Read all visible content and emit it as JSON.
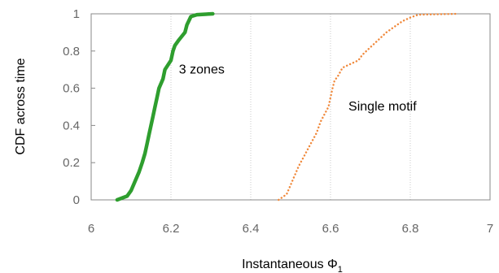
{
  "chart_data": {
    "type": "line",
    "title": "",
    "xlabel": "Instantaneous Φ",
    "xlabel_sub": "1",
    "ylabel": "CDF across time",
    "xlim": [
      6,
      7
    ],
    "ylim": [
      0,
      1
    ],
    "xticks": [
      "6",
      "6.2",
      "6.4",
      "6.6",
      "6.8",
      "7"
    ],
    "yticks": [
      "0",
      "0.2",
      "0.4",
      "0.6",
      "0.8",
      "1"
    ],
    "grid": "vertical",
    "legend": "none",
    "annotations": [
      {
        "text": "3 zones",
        "x": 6.22,
        "y": 0.68
      },
      {
        "text": "Single motif",
        "x": 6.645,
        "y": 0.48
      }
    ],
    "series": [
      {
        "style": "solid",
        "color": "#2e9e2e",
        "x": [
          6.065,
          6.09,
          6.1,
          6.11,
          6.12,
          6.128,
          6.135,
          6.14,
          6.145,
          6.15,
          6.155,
          6.16,
          6.165,
          6.17,
          6.18,
          6.185,
          6.2,
          6.205,
          6.21,
          6.22,
          6.235,
          6.24,
          6.25,
          6.265,
          6.305
        ],
        "y": [
          0.0,
          0.02,
          0.05,
          0.1,
          0.15,
          0.2,
          0.25,
          0.3,
          0.35,
          0.4,
          0.45,
          0.5,
          0.55,
          0.6,
          0.65,
          0.7,
          0.75,
          0.8,
          0.83,
          0.86,
          0.9,
          0.94,
          0.985,
          0.995,
          1.0
        ]
      },
      {
        "style": "dotted",
        "color": "#f0883a",
        "x": [
          6.47,
          6.49,
          6.5,
          6.51,
          6.52,
          6.535,
          6.55,
          6.565,
          6.575,
          6.585,
          6.595,
          6.6,
          6.605,
          6.61,
          6.62,
          6.63,
          6.65,
          6.67,
          6.68,
          6.7,
          6.72,
          6.74,
          6.76,
          6.78,
          6.8,
          6.82,
          6.92
        ],
        "y": [
          0.0,
          0.03,
          0.08,
          0.13,
          0.18,
          0.24,
          0.3,
          0.36,
          0.42,
          0.46,
          0.5,
          0.55,
          0.6,
          0.64,
          0.67,
          0.71,
          0.73,
          0.75,
          0.78,
          0.82,
          0.86,
          0.9,
          0.93,
          0.96,
          0.98,
          0.995,
          1.0
        ]
      }
    ]
  }
}
